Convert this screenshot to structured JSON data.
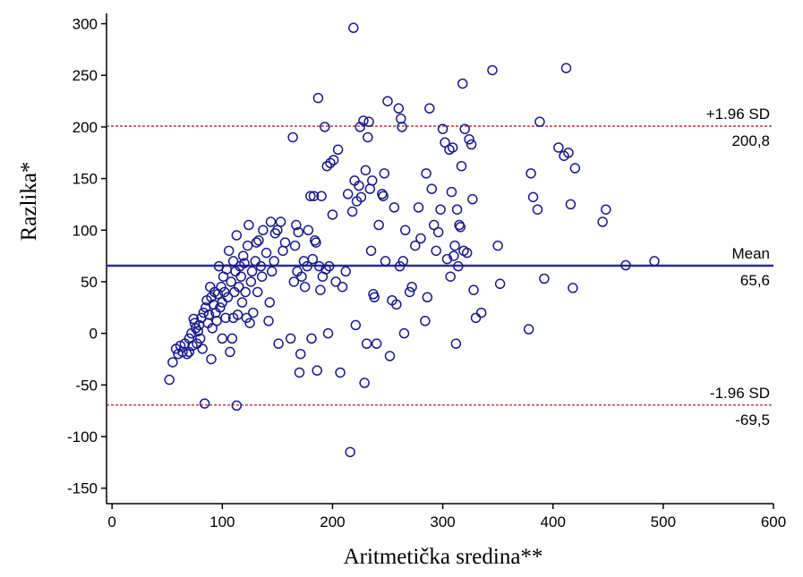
{
  "chart_data": {
    "type": "scatter",
    "x_label": "Aritmetička sredina**",
    "y_label": "Razlika*",
    "xlim": [
      -5,
      600
    ],
    "xticks": [
      0,
      100,
      200,
      300,
      400,
      500,
      600
    ],
    "ylim": [
      -165,
      310
    ],
    "yticks": [
      -150,
      -100,
      -50,
      0,
      50,
      100,
      150,
      200,
      250,
      300
    ],
    "color": "#1a1a8c",
    "reference_lines": [
      {
        "name": "+1.96 SD",
        "value": 200.8,
        "value_label": "200,8",
        "color": "#a01010",
        "style": "dashed"
      },
      {
        "name": "Mean",
        "value": 65.6,
        "value_label": "65,6",
        "color": "#2b2b9c",
        "style": "solid"
      },
      {
        "name": "-1.96 SD",
        "value": -69.5,
        "value_label": "-69,5",
        "color": "#a01010",
        "style": "dashed"
      }
    ],
    "x": [
      52,
      55,
      58,
      60,
      62,
      64,
      66,
      68,
      70,
      70,
      72,
      73,
      74,
      75,
      76,
      77,
      78,
      79,
      80,
      81,
      82,
      83,
      84,
      85,
      86,
      87,
      88,
      89,
      90,
      90,
      91,
      92,
      93,
      94,
      95,
      96,
      97,
      98,
      99,
      100,
      100,
      101,
      102,
      103,
      104,
      105,
      106,
      107,
      108,
      109,
      110,
      110,
      111,
      112,
      113,
      113,
      114,
      115,
      116,
      117,
      118,
      119,
      120,
      121,
      122,
      123,
      124,
      125,
      126,
      127,
      128,
      130,
      131,
      132,
      133,
      135,
      136,
      137,
      140,
      142,
      143,
      144,
      145,
      147,
      148,
      150,
      151,
      153,
      155,
      157,
      162,
      164,
      165,
      166,
      167,
      168,
      169,
      170,
      171,
      172,
      174,
      175,
      177,
      178,
      180,
      181,
      182,
      183,
      184,
      185,
      186,
      187,
      188,
      189,
      190,
      191,
      193,
      194,
      195,
      196,
      197,
      198,
      200,
      201,
      203,
      205,
      207,
      209,
      212,
      214,
      216,
      218,
      219,
      220,
      221,
      222,
      224,
      225,
      226,
      228,
      229,
      230,
      231,
      232,
      233,
      234,
      235,
      236,
      237,
      238,
      240,
      242,
      245,
      246,
      247,
      248,
      250,
      252,
      254,
      256,
      258,
      260,
      261,
      262,
      263,
      264,
      265,
      266,
      270,
      272,
      275,
      278,
      280,
      284,
      285,
      286,
      288,
      290,
      292,
      294,
      296,
      298,
      300,
      302,
      304,
      306,
      307,
      308,
      309,
      310,
      311,
      312,
      313,
      314,
      315,
      316,
      317,
      318,
      319,
      320,
      322,
      324,
      326,
      327,
      328,
      330,
      335,
      345,
      350,
      352,
      378,
      380,
      382,
      386,
      388,
      392,
      405,
      410,
      412,
      414,
      416,
      418,
      420,
      445,
      448,
      466,
      492
    ],
    "values": [
      -45,
      -28,
      -15,
      -20,
      -12,
      -18,
      -10,
      -20,
      -5,
      -18,
      0,
      -12,
      14,
      10,
      5,
      -10,
      2,
      8,
      -5,
      15,
      -15,
      20,
      -68,
      25,
      32,
      10,
      18,
      45,
      -25,
      35,
      5,
      28,
      40,
      20,
      12,
      38,
      65,
      25,
      45,
      -5,
      30,
      55,
      40,
      15,
      62,
      35,
      80,
      -18,
      50,
      -5,
      70,
      15,
      40,
      60,
      -70,
      95,
      18,
      45,
      65,
      55,
      30,
      75,
      68,
      40,
      15,
      85,
      105,
      10,
      50,
      60,
      20,
      70,
      88,
      40,
      90,
      65,
      55,
      100,
      78,
      12,
      30,
      108,
      60,
      70,
      97,
      100,
      -10,
      108,
      80,
      88,
      -5,
      190,
      50,
      85,
      105,
      60,
      98,
      -38,
      -20,
      55,
      70,
      45,
      65,
      100,
      133,
      -5,
      72,
      133,
      90,
      88,
      -36,
      228,
      65,
      42,
      133,
      55,
      200,
      62,
      162,
      0,
      65,
      165,
      115,
      168,
      50,
      178,
      -38,
      45,
      60,
      135,
      -115,
      118,
      296,
      148,
      8,
      128,
      143,
      200,
      132,
      206,
      -48,
      158,
      -10,
      190,
      205,
      140,
      80,
      148,
      38,
      35,
      -10,
      105,
      135,
      133,
      155,
      70,
      225,
      -22,
      32,
      122,
      28,
      218,
      65,
      208,
      200,
      70,
      0,
      100,
      40,
      45,
      85,
      122,
      92,
      12,
      155,
      35,
      218,
      140,
      105,
      80,
      98,
      120,
      198,
      185,
      72,
      178,
      55,
      137,
      180,
      75,
      85,
      -10,
      120,
      65,
      105,
      103,
      162,
      242,
      80,
      198,
      78,
      188,
      183,
      130,
      42,
      15,
      20,
      255,
      85,
      48,
      4,
      155,
      132,
      120,
      205,
      53,
      180,
      172,
      257,
      175,
      125,
      44,
      160,
      108,
      120,
      66,
      70
    ]
  }
}
